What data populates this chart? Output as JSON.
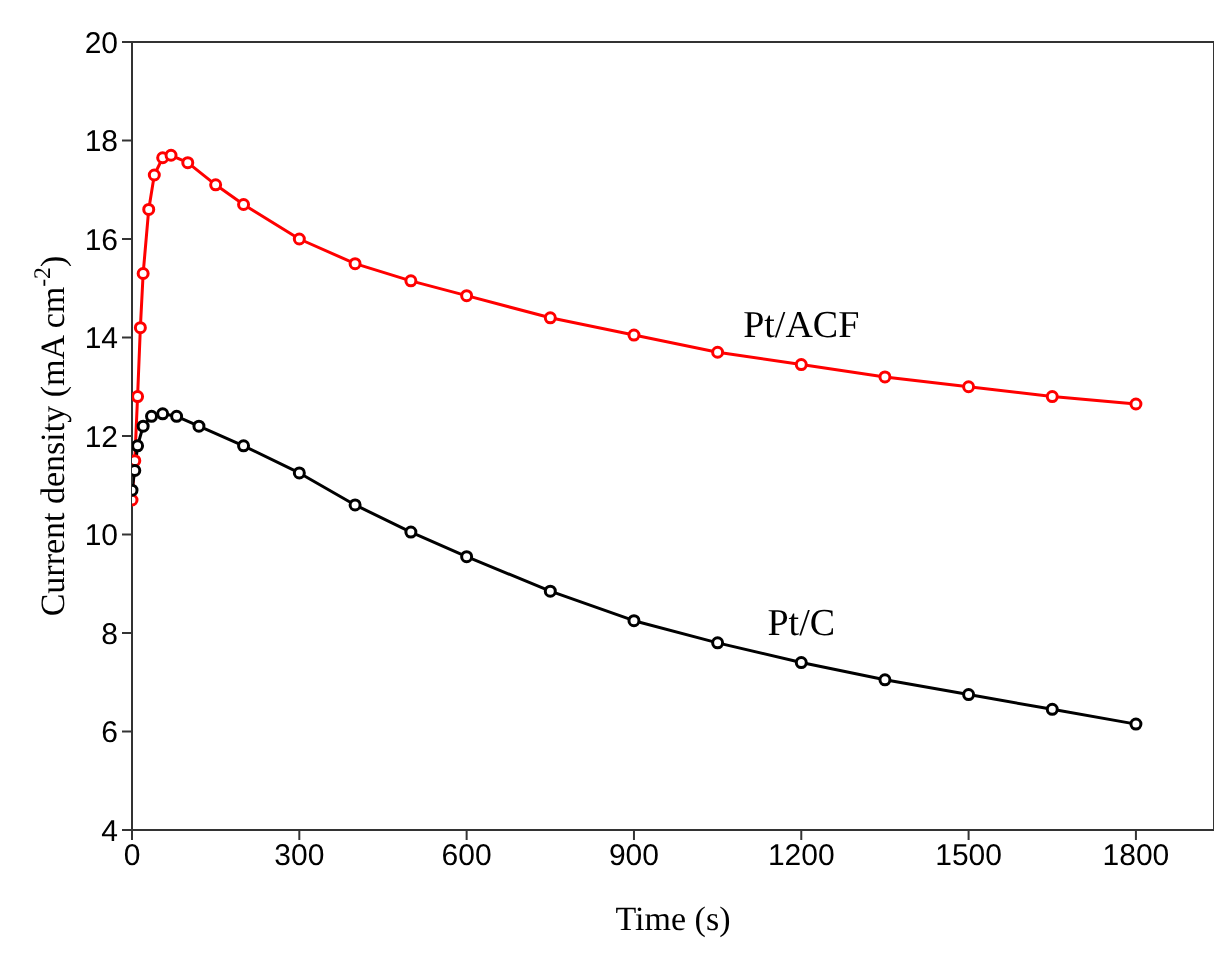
{
  "chart_data": {
    "type": "line",
    "xlabel": "Time (s)",
    "ylabel": "Current density (mA cm$^{-2}$)",
    "xlim": [
      0,
      1940
    ],
    "xticks": [
      0,
      300,
      600,
      900,
      1200,
      1500,
      1800
    ],
    "ylim": [
      4,
      20
    ],
    "yticks": [
      4,
      6,
      8,
      10,
      12,
      14,
      16,
      18,
      20
    ],
    "marker": "circle",
    "legend": false,
    "series": [
      {
        "name": "Pt/ACF",
        "color": "#ff0000",
        "x": [
          0,
          5,
          10,
          15,
          20,
          30,
          40,
          55,
          70,
          100,
          150,
          200,
          300,
          400,
          500,
          600,
          750,
          900,
          1050,
          1200,
          1350,
          1500,
          1650,
          1800
        ],
        "values": [
          10.7,
          11.5,
          12.8,
          14.2,
          15.3,
          16.6,
          17.3,
          17.65,
          17.7,
          17.55,
          17.1,
          16.7,
          16.0,
          15.5,
          15.15,
          14.85,
          14.4,
          14.05,
          13.7,
          13.45,
          13.2,
          13.0,
          12.8,
          12.65
        ]
      },
      {
        "name": "Pt/C",
        "color": "#000000",
        "x": [
          0,
          5,
          10,
          20,
          35,
          55,
          80,
          120,
          200,
          300,
          400,
          500,
          600,
          750,
          900,
          1050,
          1200,
          1350,
          1500,
          1650,
          1800
        ],
        "values": [
          10.9,
          11.3,
          11.8,
          12.2,
          12.4,
          12.45,
          12.4,
          12.2,
          11.8,
          11.25,
          10.6,
          10.05,
          9.55,
          8.85,
          8.25,
          7.8,
          7.4,
          7.05,
          6.75,
          6.45,
          6.15
        ]
      }
    ]
  }
}
